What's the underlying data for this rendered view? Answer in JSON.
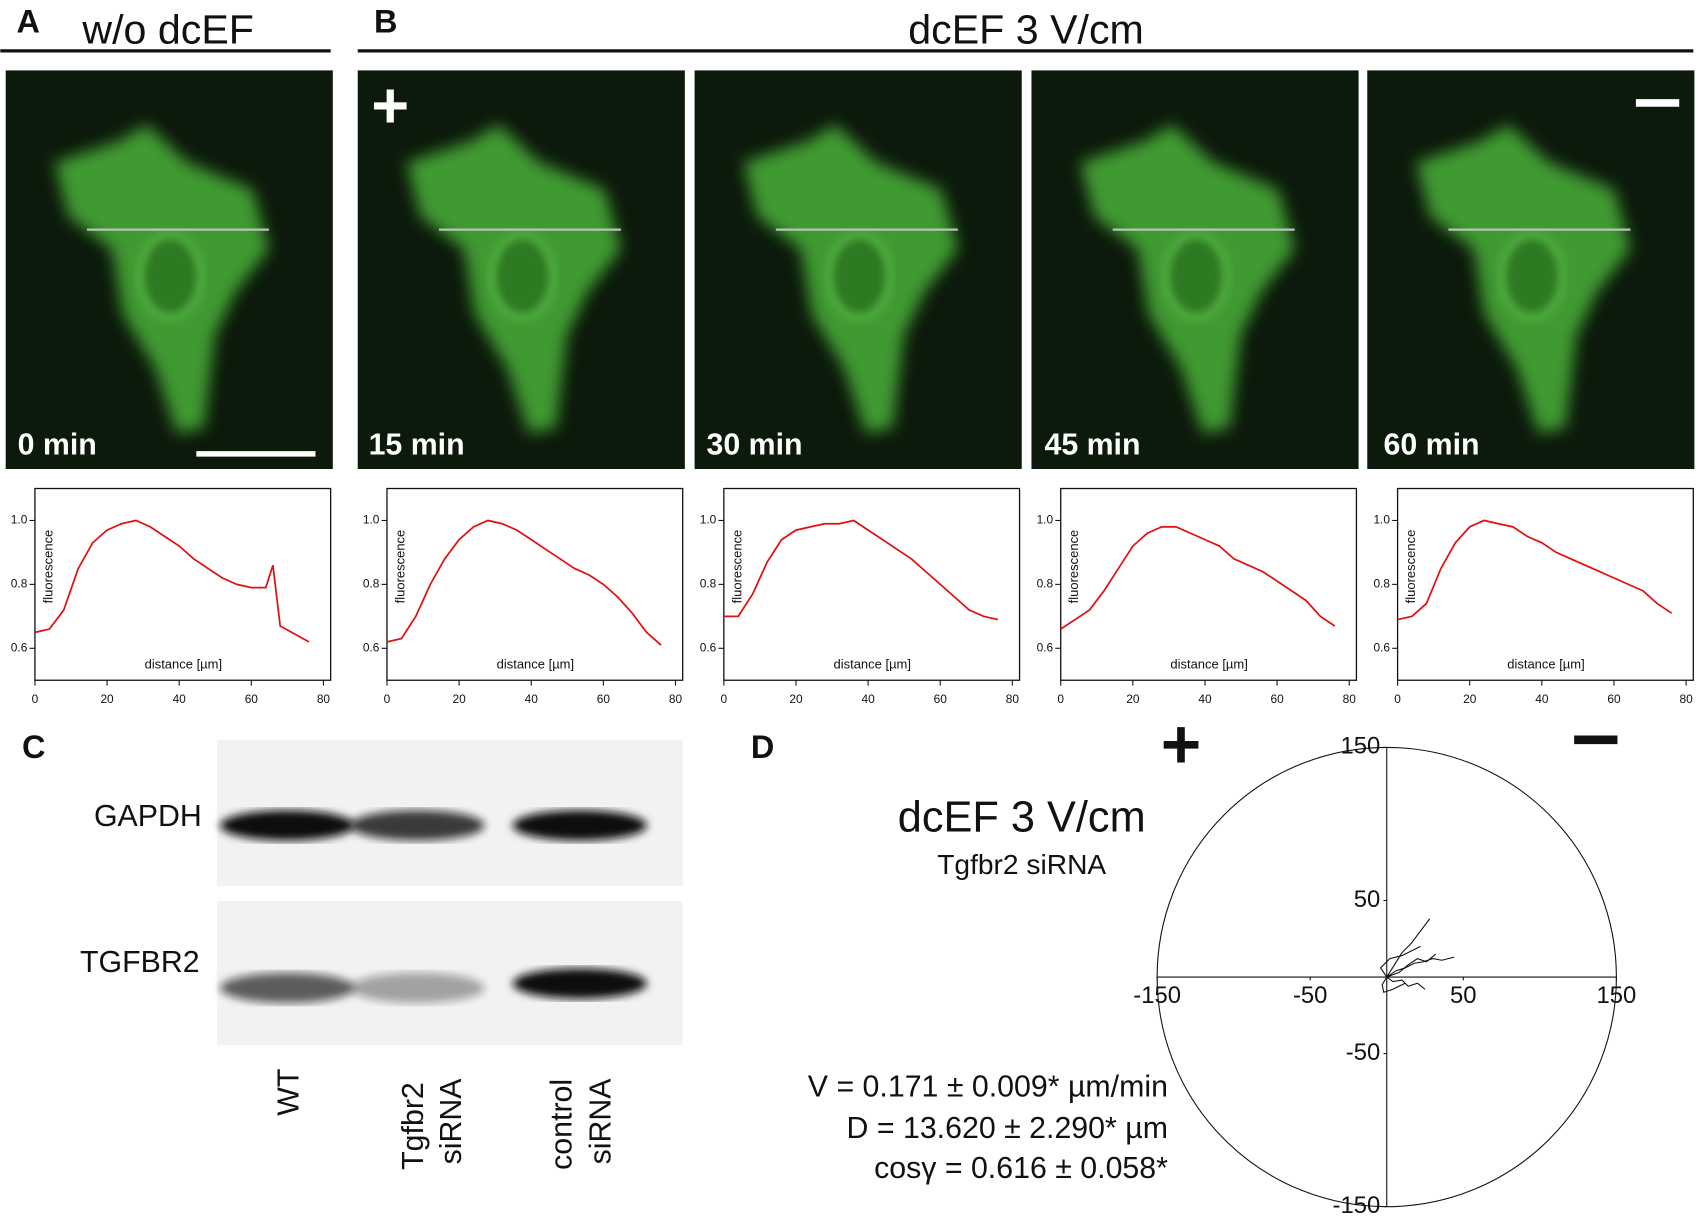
{
  "panels": {
    "A": {
      "label": "A",
      "title": "w/o dcEF"
    },
    "B": {
      "label": "B",
      "title": "dcEF 3 V/cm",
      "anode": "+"
    },
    "images": [
      "0 min",
      "15 min",
      "30 min",
      "45 min",
      "60 min"
    ],
    "C": {
      "label": "C",
      "rows": [
        "GAPDH",
        "TGFBR2"
      ],
      "lanes": [
        [
          "WT"
        ],
        [
          "Tgfbr2",
          "siRNA"
        ],
        [
          "control",
          "siRNA"
        ]
      ]
    },
    "D": {
      "label": "D",
      "anode": "+",
      "title": "dcEF 3 V/cm",
      "subtitle": "Tgfbr2 siRNA",
      "stats": [
        "V = 0.171 ± 0.009* µm/min",
        "D = 13.620 ± 2.290* µm",
        "cosγ = 0.616 ± 0.058*"
      ]
    }
  },
  "chart_data": [
    {
      "type": "line",
      "xlabel": "distance [µm]",
      "ylabel": "fluorescence",
      "color": "#e01010",
      "x": [
        0,
        4,
        8,
        12,
        16,
        20,
        24,
        28,
        32,
        36,
        40,
        44,
        48,
        52,
        56,
        60,
        64,
        66,
        68,
        76
      ],
      "values": [
        0.65,
        0.66,
        0.72,
        0.85,
        0.93,
        0.97,
        0.99,
        1.0,
        0.98,
        0.95,
        0.92,
        0.88,
        0.85,
        0.82,
        0.8,
        0.79,
        0.79,
        0.86,
        0.67,
        0.62
      ],
      "xlim": [
        0,
        82
      ],
      "ylim": [
        0.5,
        1.1
      ],
      "xticks": [
        0,
        20,
        40,
        60,
        80
      ],
      "yticks": [
        {
          "value": 1,
          "label": "1.0"
        },
        0.8,
        0.6
      ]
    },
    {
      "type": "line",
      "xlabel": "distance [µm]",
      "ylabel": "fluorescence",
      "color": "#e01010",
      "x": [
        0,
        4,
        8,
        12,
        16,
        20,
        24,
        28,
        32,
        36,
        40,
        44,
        48,
        52,
        56,
        60,
        64,
        68,
        72,
        76
      ],
      "values": [
        0.62,
        0.63,
        0.7,
        0.8,
        0.88,
        0.94,
        0.98,
        1.0,
        0.99,
        0.97,
        0.94,
        0.91,
        0.88,
        0.85,
        0.83,
        0.8,
        0.76,
        0.71,
        0.65,
        0.61
      ],
      "xlim": [
        0,
        82
      ],
      "ylim": [
        0.5,
        1.1
      ],
      "xticks": [
        0,
        20,
        40,
        60,
        80
      ],
      "yticks": [
        {
          "value": 1,
          "label": "1.0"
        },
        0.8,
        0.6
      ]
    },
    {
      "type": "line",
      "xlabel": "distance [µm]",
      "ylabel": "fluorescence",
      "color": "#e01010",
      "x": [
        0,
        4,
        8,
        12,
        16,
        20,
        24,
        28,
        32,
        36,
        40,
        44,
        48,
        52,
        56,
        60,
        64,
        68,
        72,
        76
      ],
      "values": [
        0.7,
        0.7,
        0.77,
        0.87,
        0.94,
        0.97,
        0.98,
        0.99,
        0.99,
        1.0,
        0.97,
        0.94,
        0.91,
        0.88,
        0.84,
        0.8,
        0.76,
        0.72,
        0.7,
        0.69
      ],
      "xlim": [
        0,
        82
      ],
      "ylim": [
        0.5,
        1.1
      ],
      "xticks": [
        0,
        20,
        40,
        60,
        80
      ],
      "yticks": [
        {
          "value": 1,
          "label": "1.0"
        },
        0.8,
        0.6
      ]
    },
    {
      "type": "line",
      "xlabel": "distance [µm]",
      "ylabel": "fluorescence",
      "color": "#e01010",
      "x": [
        0,
        4,
        8,
        12,
        16,
        20,
        24,
        28,
        32,
        36,
        40,
        44,
        48,
        52,
        56,
        60,
        64,
        68,
        72,
        76
      ],
      "values": [
        0.66,
        0.69,
        0.72,
        0.78,
        0.85,
        0.92,
        0.96,
        0.98,
        0.98,
        0.96,
        0.94,
        0.92,
        0.88,
        0.86,
        0.84,
        0.81,
        0.78,
        0.75,
        0.7,
        0.67
      ],
      "xlim": [
        0,
        82
      ],
      "ylim": [
        0.5,
        1.1
      ],
      "xticks": [
        0,
        20,
        40,
        60,
        80
      ],
      "yticks": [
        {
          "value": 1,
          "label": "1.0"
        },
        0.8,
        0.6
      ]
    },
    {
      "type": "line",
      "xlabel": "distance [µm]",
      "ylabel": "fluorescence",
      "color": "#e01010",
      "x": [
        0,
        4,
        8,
        12,
        16,
        20,
        24,
        28,
        32,
        36,
        40,
        44,
        48,
        52,
        56,
        60,
        64,
        68,
        72,
        76
      ],
      "values": [
        0.69,
        0.7,
        0.74,
        0.85,
        0.93,
        0.98,
        1.0,
        0.99,
        0.98,
        0.95,
        0.93,
        0.9,
        0.88,
        0.86,
        0.84,
        0.82,
        0.8,
        0.78,
        0.74,
        0.71
      ],
      "xlim": [
        0,
        82
      ],
      "ylim": [
        0.5,
        1.1
      ],
      "xticks": [
        0,
        20,
        40,
        60,
        80
      ],
      "yticks": [
        {
          "value": 1,
          "label": "1.0"
        },
        0.8,
        0.6
      ]
    },
    {
      "type": "tracks",
      "color": "#111111",
      "xlim": [
        -150,
        150
      ],
      "ylim": [
        -150,
        150
      ],
      "xticks": [
        -150,
        -50,
        50,
        150
      ],
      "yticks": [
        150,
        50,
        -50,
        -150
      ],
      "series": [
        {
          "x": [
            0,
            6,
            12,
            18,
            24,
            30,
            36,
            44
          ],
          "y": [
            0,
            4,
            6,
            9,
            10,
            12,
            11,
            13
          ]
        },
        {
          "x": [
            0,
            5,
            10,
            16,
            22,
            28
          ],
          "y": [
            0,
            8,
            16,
            22,
            30,
            38
          ]
        },
        {
          "x": [
            0,
            8,
            14,
            20,
            26,
            32
          ],
          "y": [
            0,
            3,
            8,
            12,
            10,
            15
          ]
        },
        {
          "x": [
            0,
            -3,
            -2,
            4,
            8,
            12
          ],
          "y": [
            0,
            -5,
            -10,
            -8,
            -6,
            -4
          ]
        },
        {
          "x": [
            0,
            -4,
            2,
            10,
            18,
            22
          ],
          "y": [
            0,
            6,
            12,
            14,
            18,
            20
          ]
        },
        {
          "x": [
            0,
            4,
            10,
            14,
            20,
            25
          ],
          "y": [
            0,
            -3,
            -2,
            -6,
            -4,
            -8
          ]
        }
      ]
    }
  ]
}
